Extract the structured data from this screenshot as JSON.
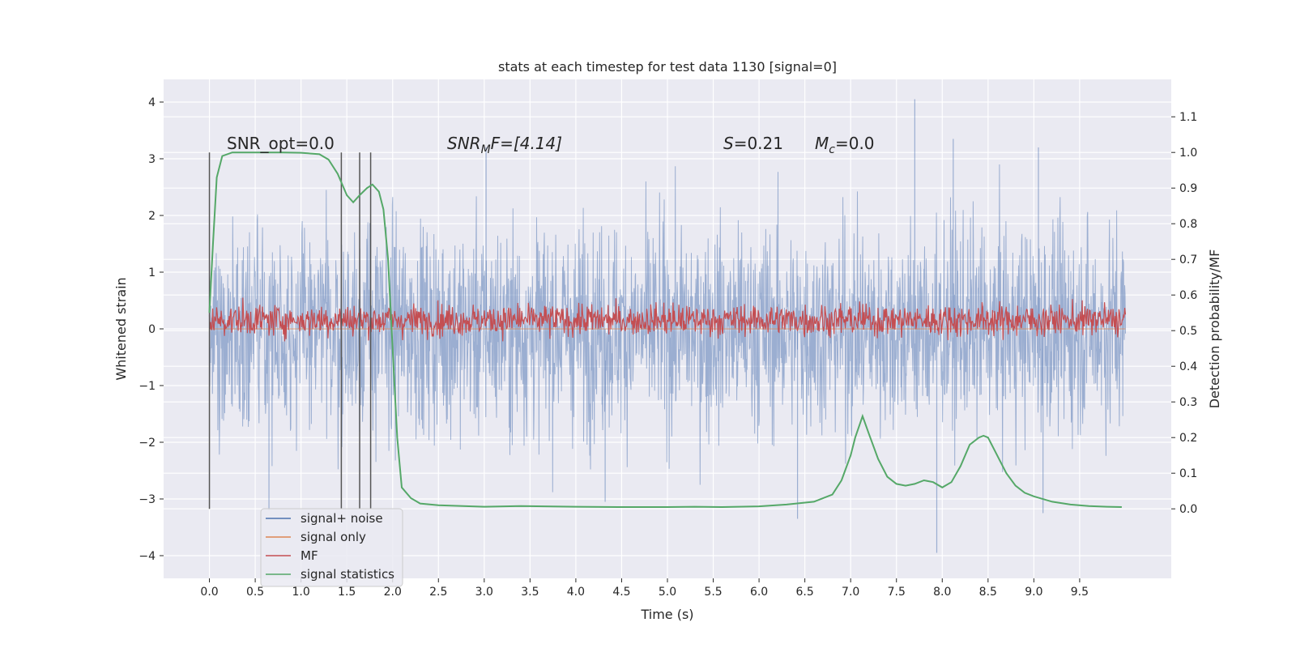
{
  "chart_data": {
    "type": "line",
    "title": "stats at each timestep for test data 1130 [signal=0]",
    "xlabel": "Time (s)",
    "ylabel": "Whitened strain",
    "ylabel_right": "Detection probability/MF",
    "xlim": [
      -0.5,
      10.5
    ],
    "ylim": [
      -4.4,
      4.4
    ],
    "ylim_right": [
      -0.195,
      1.205
    ],
    "x_ticks": [
      "0.0",
      "0.5",
      "1.0",
      "1.5",
      "2.0",
      "2.5",
      "3.0",
      "3.5",
      "4.0",
      "4.5",
      "5.0",
      "5.5",
      "6.0",
      "6.5",
      "7.0",
      "7.5",
      "8.0",
      "8.5",
      "9.0",
      "9.5"
    ],
    "y_ticks": [
      "−4",
      "−3",
      "−2",
      "−1",
      "0",
      "1",
      "2",
      "3",
      "4"
    ],
    "y_ticks_right": [
      "0.0",
      "0.1",
      "0.2",
      "0.3",
      "0.4",
      "0.5",
      "0.6",
      "0.7",
      "0.8",
      "0.9",
      "1.0",
      "1.1"
    ],
    "grid": true,
    "legend_position": "lower-left",
    "annotations": {
      "snr_opt": "SNR_opt=0.0",
      "snr_mf_main": "SNR",
      "snr_mf_sub": "M",
      "snr_mf_rest": "F=[4.14]",
      "s_var": "S",
      "s_val": "=0.21",
      "mc_var": "M",
      "mc_sub": "c",
      "mc_val": "=0.0"
    },
    "vlines_x": [
      0.0,
      1.44,
      1.64,
      1.76
    ],
    "series": [
      {
        "name": "signal+ noise",
        "color": "#4c72b0",
        "axis": "left",
        "x_range": [
          0.0,
          10.0
        ],
        "envelope_typical": [
          -2.0,
          2.0
        ],
        "peaks": [
          [
            7.7,
            4.05
          ],
          [
            7.94,
            -3.95
          ],
          [
            8.12,
            3.35
          ],
          [
            6.42,
            -3.35
          ],
          [
            9.1,
            -3.25
          ],
          [
            4.32,
            -3.05
          ],
          [
            0.65,
            -3.2
          ],
          [
            3.02,
            3.2
          ],
          [
            9.05,
            3.2
          ]
        ]
      },
      {
        "name": "signal only",
        "color": "#dd8452",
        "axis": "left",
        "x": [
          0.0,
          10.0
        ],
        "y": [
          0.0,
          0.0
        ]
      },
      {
        "name": "MF",
        "color": "#c44e52",
        "axis": "right",
        "x_range": [
          0.0,
          10.0
        ],
        "mean": 0.53,
        "range": [
          0.47,
          0.63
        ]
      },
      {
        "name": "signal statistics",
        "color": "#55a868",
        "axis": "right",
        "x": [
          0.0,
          0.04,
          0.08,
          0.14,
          0.25,
          0.5,
          0.8,
          1.0,
          1.2,
          1.3,
          1.4,
          1.5,
          1.57,
          1.64,
          1.72,
          1.78,
          1.85,
          1.9,
          1.95,
          2.0,
          2.05,
          2.1,
          2.2,
          2.3,
          2.5,
          3.0,
          3.4,
          4.0,
          4.5,
          5.0,
          5.3,
          5.6,
          6.0,
          6.3,
          6.6,
          6.8,
          6.9,
          7.0,
          7.05,
          7.13,
          7.2,
          7.3,
          7.4,
          7.5,
          7.6,
          7.7,
          7.8,
          7.9,
          8.0,
          8.1,
          8.2,
          8.3,
          8.4,
          8.45,
          8.5,
          8.6,
          8.7,
          8.8,
          8.9,
          9.0,
          9.2,
          9.4,
          9.6,
          9.8,
          9.96
        ],
        "y": [
          0.55,
          0.75,
          0.93,
          0.99,
          1.0,
          1.0,
          1.0,
          0.999,
          0.995,
          0.98,
          0.94,
          0.88,
          0.86,
          0.88,
          0.9,
          0.91,
          0.89,
          0.84,
          0.7,
          0.45,
          0.2,
          0.06,
          0.03,
          0.015,
          0.01,
          0.006,
          0.008,
          0.006,
          0.005,
          0.005,
          0.006,
          0.005,
          0.007,
          0.012,
          0.02,
          0.04,
          0.08,
          0.15,
          0.2,
          0.26,
          0.21,
          0.14,
          0.09,
          0.07,
          0.065,
          0.07,
          0.08,
          0.075,
          0.06,
          0.075,
          0.12,
          0.18,
          0.2,
          0.205,
          0.2,
          0.15,
          0.1,
          0.065,
          0.045,
          0.035,
          0.02,
          0.012,
          0.008,
          0.006,
          0.005
        ]
      }
    ]
  }
}
